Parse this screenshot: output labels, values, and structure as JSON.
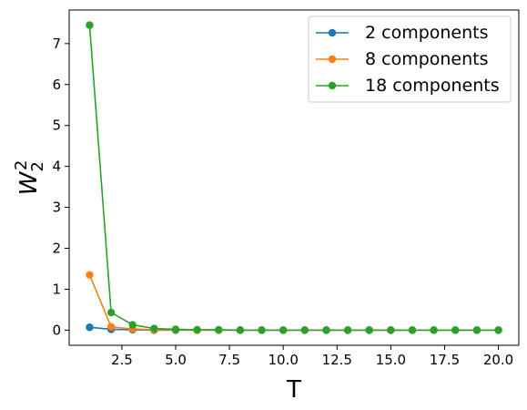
{
  "chart_data": {
    "type": "line",
    "title": "",
    "xlabel": "T",
    "ylabel": "W",
    "ylabel_sup": "2",
    "ylabel_sub": "2",
    "xlim": [
      0.05,
      20.95
    ],
    "ylim": [
      -0.37,
      7.82
    ],
    "xticks": [
      2.5,
      5.0,
      7.5,
      10.0,
      12.5,
      15.0,
      17.5,
      20.0
    ],
    "xtick_labels": [
      "2.5",
      "5.0",
      "7.5",
      "10.0",
      "12.5",
      "15.0",
      "17.5",
      "20.0"
    ],
    "yticks": [
      0,
      1,
      2,
      3,
      4,
      5,
      6,
      7
    ],
    "ytick_labels": [
      "0",
      "1",
      "2",
      "3",
      "4",
      "5",
      "6",
      "7"
    ],
    "grid": false,
    "legend_position": "top-right",
    "series": [
      {
        "name": "2 components",
        "color": "#1f77b4",
        "x": [
          1,
          2,
          3,
          4,
          5,
          6,
          7,
          8,
          9,
          10,
          11,
          12,
          13,
          14,
          15,
          16,
          17,
          18,
          19,
          20
        ],
        "y": [
          0.07,
          0.02,
          0.01,
          0.0,
          0.0,
          0.0,
          0.0,
          0.0,
          0.0,
          0.0,
          0.0,
          0.0,
          0.0,
          0.0,
          0.0,
          0.0,
          0.0,
          0.0,
          0.0,
          0.0
        ]
      },
      {
        "name": "8 components",
        "color": "#ff7f0e",
        "x": [
          1,
          2,
          3,
          4,
          5,
          6,
          7,
          8,
          9,
          10,
          11,
          12,
          13,
          14,
          15,
          16,
          17,
          18,
          19,
          20
        ],
        "y": [
          1.35,
          0.08,
          0.03,
          0.01,
          0.01,
          0.0,
          0.0,
          0.0,
          0.0,
          0.0,
          0.0,
          0.0,
          0.0,
          0.0,
          0.0,
          0.0,
          0.0,
          0.0,
          0.0,
          0.0
        ]
      },
      {
        "name": "18 components",
        "color": "#2ca02c",
        "x": [
          1,
          2,
          3,
          4,
          5,
          6,
          7,
          8,
          9,
          10,
          11,
          12,
          13,
          14,
          15,
          16,
          17,
          18,
          19,
          20
        ],
        "y": [
          7.45,
          0.43,
          0.13,
          0.04,
          0.02,
          0.01,
          0.01,
          0.0,
          0.0,
          0.0,
          0.0,
          0.0,
          0.0,
          0.0,
          0.0,
          0.0,
          0.0,
          0.0,
          0.0,
          0.0
        ]
      }
    ]
  }
}
